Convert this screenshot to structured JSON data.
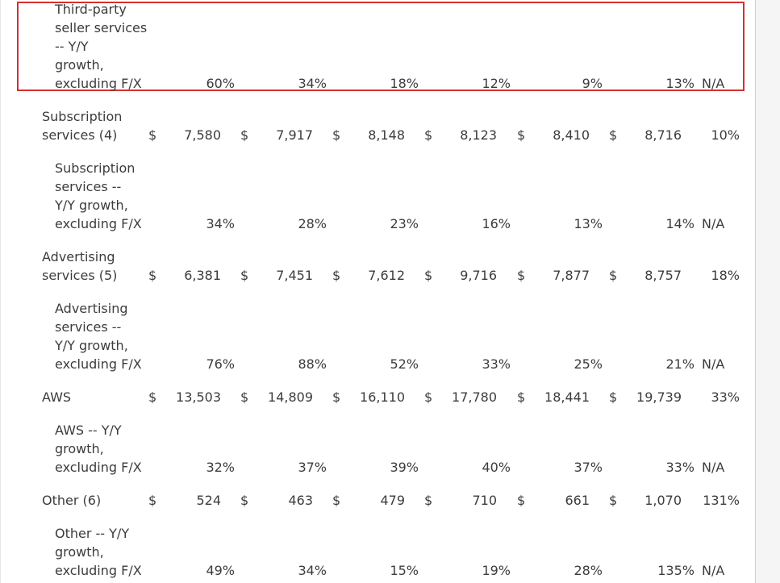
{
  "rows": {
    "third_party_growth": {
      "label_lines": [
        "Third-party",
        "seller services",
        "-- Y/Y",
        "growth,",
        "excluding F/X"
      ],
      "values": [
        "60%",
        "34%",
        "18%",
        "12%",
        "9%",
        "13%"
      ],
      "change": "N/A"
    },
    "subscription": {
      "label_lines": [
        "Subscription",
        "services (4)"
      ],
      "currency": "$",
      "values": [
        "7,580",
        "7,917",
        "8,148",
        "8,123",
        "8,410",
        "8,716"
      ],
      "change": "10%"
    },
    "subscription_growth": {
      "label_lines": [
        "Subscription",
        "services --",
        "Y/Y growth,",
        "excluding F/X"
      ],
      "values": [
        "34%",
        "28%",
        "23%",
        "16%",
        "13%",
        "14%"
      ],
      "change": "N/A"
    },
    "advertising": {
      "label_lines": [
        "Advertising",
        "services (5)"
      ],
      "currency": "$",
      "values": [
        "6,381",
        "7,451",
        "7,612",
        "9,716",
        "7,877",
        "8,757"
      ],
      "change": "18%"
    },
    "advertising_growth": {
      "label_lines": [
        "Advertising",
        "services --",
        "Y/Y growth,",
        "excluding F/X"
      ],
      "values": [
        "76%",
        "88%",
        "52%",
        "33%",
        "25%",
        "21%"
      ],
      "change": "N/A"
    },
    "aws": {
      "label_lines": [
        "AWS"
      ],
      "currency": "$",
      "values": [
        "13,503",
        "14,809",
        "16,110",
        "17,780",
        "18,441",
        "19,739"
      ],
      "change": "33%"
    },
    "aws_growth": {
      "label_lines": [
        "AWS -- Y/Y",
        "growth,",
        "excluding F/X"
      ],
      "values": [
        "32%",
        "37%",
        "39%",
        "40%",
        "37%",
        "33%"
      ],
      "change": "N/A"
    },
    "other": {
      "label_lines": [
        "Other (6)"
      ],
      "currency": "$",
      "values": [
        "524",
        "463",
        "479",
        "710",
        "661",
        "1,070"
      ],
      "change": "131%"
    },
    "other_growth": {
      "label_lines": [
        "Other -- Y/Y",
        "growth,",
        "excluding F/X"
      ],
      "values": [
        "49%",
        "34%",
        "15%",
        "19%",
        "28%",
        "135%"
      ],
      "change": "N/A"
    }
  },
  "highlight_color": "#d62f2f"
}
